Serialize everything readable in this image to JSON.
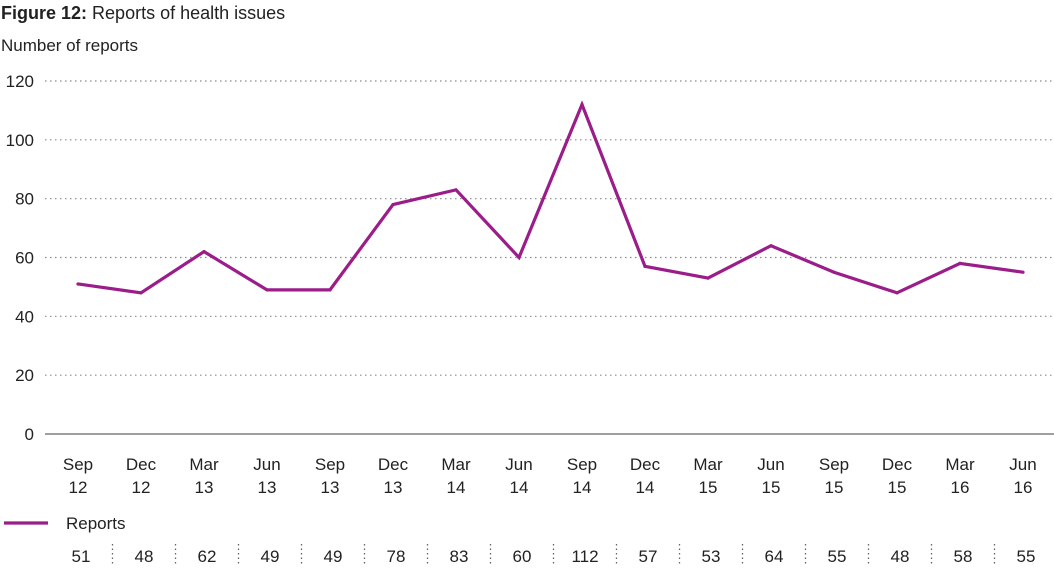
{
  "title": {
    "prefix": "Figure 12:",
    "text": "Reports of health issues"
  },
  "chart_data": {
    "type": "line",
    "title": "Figure 12: Reports of health issues",
    "ylabel": "Number of reports",
    "xlabel": "",
    "ylim": [
      0,
      120
    ],
    "yticks": [
      0,
      20,
      40,
      60,
      80,
      100,
      120
    ],
    "grid": true,
    "legend_position": "bottom-left",
    "categories": [
      [
        "Sep",
        "12"
      ],
      [
        "Dec",
        "12"
      ],
      [
        "Mar",
        "13"
      ],
      [
        "Jun",
        "13"
      ],
      [
        "Sep",
        "13"
      ],
      [
        "Dec",
        "13"
      ],
      [
        "Mar",
        "14"
      ],
      [
        "Jun",
        "14"
      ],
      [
        "Sep",
        "14"
      ],
      [
        "Dec",
        "14"
      ],
      [
        "Mar",
        "15"
      ],
      [
        "Jun",
        "15"
      ],
      [
        "Sep",
        "15"
      ],
      [
        "Dec",
        "15"
      ],
      [
        "Mar",
        "16"
      ],
      [
        "Jun",
        "16"
      ]
    ],
    "series": [
      {
        "name": "Reports",
        "color": "#9b1d8a",
        "values": [
          51,
          48,
          62,
          49,
          49,
          78,
          83,
          60,
          112,
          57,
          53,
          64,
          55,
          48,
          58,
          55
        ]
      }
    ]
  }
}
